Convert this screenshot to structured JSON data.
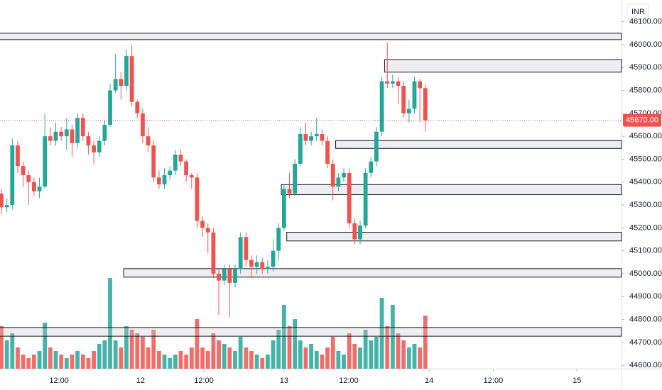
{
  "chart_data": {
    "type": "candlestick",
    "currency": "INR",
    "current_price": {
      "value": 45670,
      "label": "45670.00"
    },
    "x": [
      0,
      1,
      2,
      3,
      4,
      5,
      6,
      7,
      8,
      9,
      10,
      11,
      12,
      13,
      14,
      15,
      16,
      17,
      18,
      19,
      20,
      21,
      22,
      23,
      24,
      25,
      26,
      27,
      28,
      29,
      30,
      31,
      32,
      33,
      34,
      35,
      36,
      37,
      38,
      39,
      40,
      41,
      42,
      43,
      44,
      45,
      46,
      47,
      48,
      49,
      50,
      51,
      52,
      53,
      54,
      55,
      56,
      57,
      58,
      59,
      60,
      61,
      62,
      63,
      64,
      65,
      66,
      67,
      68,
      69,
      70,
      71,
      72,
      73,
      74,
      75,
      76,
      77,
      78
    ],
    "open": [
      45350,
      45290,
      45300,
      45560,
      45470,
      45430,
      45400,
      45360,
      45380,
      45600,
      45580,
      45620,
      45600,
      45630,
      45570,
      45680,
      45600,
      45560,
      45530,
      45580,
      45650,
      45800,
      45850,
      45820,
      45950,
      45750,
      45700,
      45600,
      45560,
      45420,
      45390,
      45430,
      45450,
      45520,
      45490,
      45430,
      45420,
      45230,
      45200,
      45180,
      45000,
      44970,
      45020,
      44960,
      45020,
      45160,
      45060,
      45030,
      45050,
      45020,
      45030,
      45100,
      45200,
      45370,
      45350,
      45480,
      45610,
      45580,
      45600,
      45610,
      45580,
      45480,
      45380,
      45420,
      45440,
      45220,
      45150,
      45210,
      45440,
      45490,
      45620,
      45840,
      45830,
      45840,
      45820,
      45700,
      45720,
      45840,
      45810
    ],
    "high": [
      45370,
      45330,
      45590,
      45580,
      45490,
      45450,
      45420,
      45420,
      45700,
      45640,
      45660,
      45640,
      45680,
      45650,
      45700,
      45700,
      45620,
      45580,
      45600,
      45670,
      45830,
      45960,
      45880,
      45980,
      46000,
      45760,
      45720,
      45640,
      45580,
      45450,
      45460,
      45470,
      45540,
      45540,
      45500,
      45440,
      45440,
      45250,
      45220,
      45200,
      45020,
      45040,
      45040,
      45040,
      45180,
      45180,
      45080,
      45080,
      45070,
      45060,
      45150,
      45220,
      45390,
      45440,
      45500,
      45640,
      45660,
      45620,
      45680,
      45630,
      45600,
      45500,
      45440,
      45460,
      45460,
      45240,
      45230,
      45460,
      45510,
      45640,
      45860,
      46010,
      45870,
      45860,
      45840,
      45760,
      45860,
      45850,
      45830
    ],
    "low": [
      45260,
      45270,
      45280,
      45440,
      45380,
      45300,
      45340,
      45330,
      45370,
      45560,
      45560,
      45580,
      45540,
      45510,
      45550,
      45580,
      45520,
      45480,
      45510,
      45560,
      45640,
      45790,
      45760,
      45800,
      45730,
      45680,
      45570,
      45530,
      45400,
      45370,
      45370,
      45410,
      45430,
      45470,
      45400,
      45370,
      45200,
      45160,
      45090,
      44980,
      44820,
      44950,
      44810,
      44940,
      45000,
      45030,
      44980,
      45000,
      45000,
      45000,
      45010,
      45060,
      45190,
      45330,
      45340,
      45470,
      45560,
      45560,
      45580,
      45560,
      45460,
      45320,
      45360,
      45400,
      45200,
      45130,
      45130,
      45200,
      45420,
      45470,
      45600,
      45810,
      45810,
      45740,
      45680,
      45660,
      45700,
      45660,
      45620
    ],
    "close": [
      45290,
      45300,
      45560,
      45470,
      45430,
      45400,
      45360,
      45380,
      45600,
      45580,
      45620,
      45600,
      45630,
      45570,
      45680,
      45600,
      45560,
      45530,
      45580,
      45650,
      45800,
      45850,
      45820,
      45950,
      45750,
      45700,
      45600,
      45560,
      45420,
      45390,
      45430,
      45450,
      45520,
      45490,
      45430,
      45420,
      45230,
      45200,
      45180,
      45000,
      44970,
      45020,
      44960,
      45020,
      45160,
      45060,
      45030,
      45050,
      45020,
      45030,
      45100,
      45200,
      45370,
      45350,
      45480,
      45610,
      45580,
      45600,
      45610,
      45580,
      45480,
      45380,
      45420,
      45440,
      45220,
      45150,
      45210,
      45440,
      45490,
      45620,
      45840,
      45830,
      45840,
      45820,
      45700,
      45720,
      45840,
      45810,
      45670
    ],
    "volume": [
      60,
      40,
      50,
      30,
      20,
      15,
      20,
      25,
      65,
      30,
      25,
      20,
      15,
      20,
      25,
      20,
      15,
      25,
      35,
      40,
      128,
      40,
      30,
      60,
      55,
      50,
      45,
      30,
      55,
      25,
      20,
      15,
      20,
      25,
      20,
      30,
      70,
      30,
      25,
      50,
      40,
      35,
      30,
      25,
      45,
      30,
      25,
      20,
      15,
      20,
      40,
      55,
      90,
      60,
      70,
      40,
      30,
      35,
      25,
      20,
      30,
      45,
      25,
      20,
      50,
      35,
      30,
      55,
      40,
      45,
      100,
      60,
      90,
      50,
      40,
      30,
      35,
      30,
      75
    ],
    "up_color": "#26a69a",
    "down_color": "#ef5350",
    "zones": [
      {
        "start": 0,
        "top": 46050,
        "bottom": 46022
      },
      {
        "start": 71,
        "top": 45935,
        "bottom": 45880
      },
      {
        "start": 62,
        "top": 45581,
        "bottom": 45547
      },
      {
        "start": 52,
        "top": 45389,
        "bottom": 45345
      },
      {
        "start": 53,
        "top": 45181,
        "bottom": 45143
      },
      {
        "start": 23,
        "top": 45022,
        "bottom": 44985
      },
      {
        "start": 0,
        "top": 44765,
        "bottom": 44727
      }
    ],
    "xlim": [
      -0.26,
      114.1
    ],
    "xticks": [
      {
        "value": 10.6,
        "label": "12:00"
      },
      {
        "value": 25.6,
        "label": "12"
      },
      {
        "value": 37.25,
        "label": "12:00"
      },
      {
        "value": 52,
        "label": "13"
      },
      {
        "value": 63.9,
        "label": "12:00"
      },
      {
        "value": 78.7,
        "label": "14"
      },
      {
        "value": 90.5,
        "label": "12:00"
      },
      {
        "value": 105.9,
        "label": "15"
      }
    ],
    "ylim": [
      44585,
      46195
    ],
    "yticks": [
      {
        "value": 44600,
        "label": "44600.00"
      },
      {
        "value": 44700,
        "label": "44700.00"
      },
      {
        "value": 44800,
        "label": "44800.00"
      },
      {
        "value": 44900,
        "label": "44900.00"
      },
      {
        "value": 45000,
        "label": "45000.00"
      },
      {
        "value": 45100,
        "label": "45100.00"
      },
      {
        "value": 45200,
        "label": "45200.00"
      },
      {
        "value": 45300,
        "label": "45300.00"
      },
      {
        "value": 45400,
        "label": "45400.00"
      },
      {
        "value": 45500,
        "label": "45500.00"
      },
      {
        "value": 45600,
        "label": "45600.00"
      },
      {
        "value": 45700,
        "label": "45700.00"
      },
      {
        "value": 45800,
        "label": "45800.00"
      },
      {
        "value": 45900,
        "label": "45900.00"
      },
      {
        "value": 46000,
        "label": "46000.00"
      },
      {
        "value": 46100,
        "label": "46100.00"
      }
    ]
  }
}
